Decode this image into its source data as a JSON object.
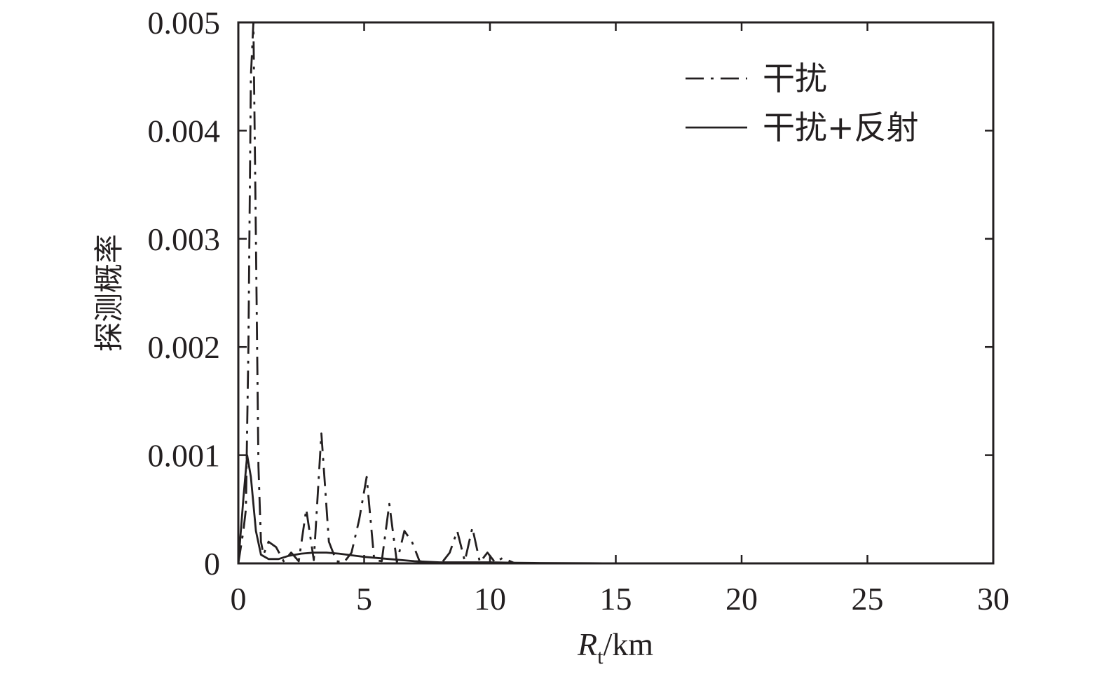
{
  "chart_data": {
    "type": "line",
    "title": "",
    "xlabel": {
      "main": "R",
      "sub": "t",
      "unit": "/km"
    },
    "ylabel": "探测概率",
    "xlim": [
      0,
      30
    ],
    "ylim": [
      0,
      0.005
    ],
    "xticks": [
      0,
      5,
      10,
      15,
      20,
      25,
      30
    ],
    "xtick_labels": [
      "0",
      "5",
      "10",
      "15",
      "20",
      "25",
      "30"
    ],
    "yticks": [
      0,
      0.001,
      0.002,
      0.003,
      0.004,
      0.005
    ],
    "ytick_labels": [
      "0",
      "0.001",
      "0.002",
      "0.003",
      "0.004",
      "0.005"
    ],
    "grid": false,
    "legend_position": "top-right",
    "series": [
      {
        "name": "干扰",
        "style": "dash-dot",
        "color": "#231f20",
        "x": [
          0,
          0.2,
          0.3,
          0.4,
          0.5,
          0.6,
          0.7,
          0.8,
          0.9,
          1.0,
          1.2,
          1.5,
          1.8,
          2.1,
          2.4,
          2.7,
          3.0,
          3.3,
          3.6,
          3.9,
          4.2,
          4.5,
          4.8,
          5.1,
          5.4,
          5.7,
          6.0,
          6.3,
          6.6,
          6.9,
          7.2,
          7.5,
          7.8,
          8.1,
          8.4,
          8.7,
          9.0,
          9.3,
          9.6,
          9.9,
          10.2,
          10.5,
          11,
          12,
          13,
          14,
          15
        ],
        "y": [
          0.0,
          0.0003,
          0.0005,
          0.002,
          0.0045,
          0.005,
          0.003,
          0.0009,
          0.0002,
          8e-05,
          0.0002,
          0.00015,
          2e-05,
          0.0001,
          2e-05,
          0.0005,
          3e-05,
          0.0012,
          0.0002,
          2e-05,
          1e-05,
          0.0001,
          0.0004,
          0.0008,
          3e-05,
          2e-05,
          0.00055,
          1e-05,
          0.0003,
          0.0002,
          2e-05,
          1e-05,
          0.0,
          1e-05,
          0.0001,
          0.0003,
          2e-05,
          0.00033,
          1e-05,
          0.0001,
          1e-05,
          5e-05,
          0.0,
          0.0,
          0.0,
          0.0,
          0.0
        ]
      },
      {
        "name": "干扰+反射",
        "style": "solid",
        "color": "#231f20",
        "x": [
          0,
          0.2,
          0.35,
          0.5,
          0.7,
          0.9,
          1.2,
          1.6,
          2.0,
          2.5,
          3.0,
          3.5,
          4.0,
          5.0,
          6.0,
          7.0,
          8.0,
          9.0,
          10.0,
          11.0,
          12.0,
          13.0,
          14.0,
          15.0
        ],
        "y": [
          0.0,
          0.0006,
          0.001,
          0.0008,
          0.0003,
          8e-05,
          4e-05,
          4e-05,
          7e-05,
          9e-05,
          0.0001,
          0.0001,
          9e-05,
          6e-05,
          4e-05,
          2e-05,
          1e-05,
          1e-05,
          1e-05,
          6e-06,
          3e-06,
          2e-06,
          1e-06,
          0.0
        ]
      }
    ]
  }
}
